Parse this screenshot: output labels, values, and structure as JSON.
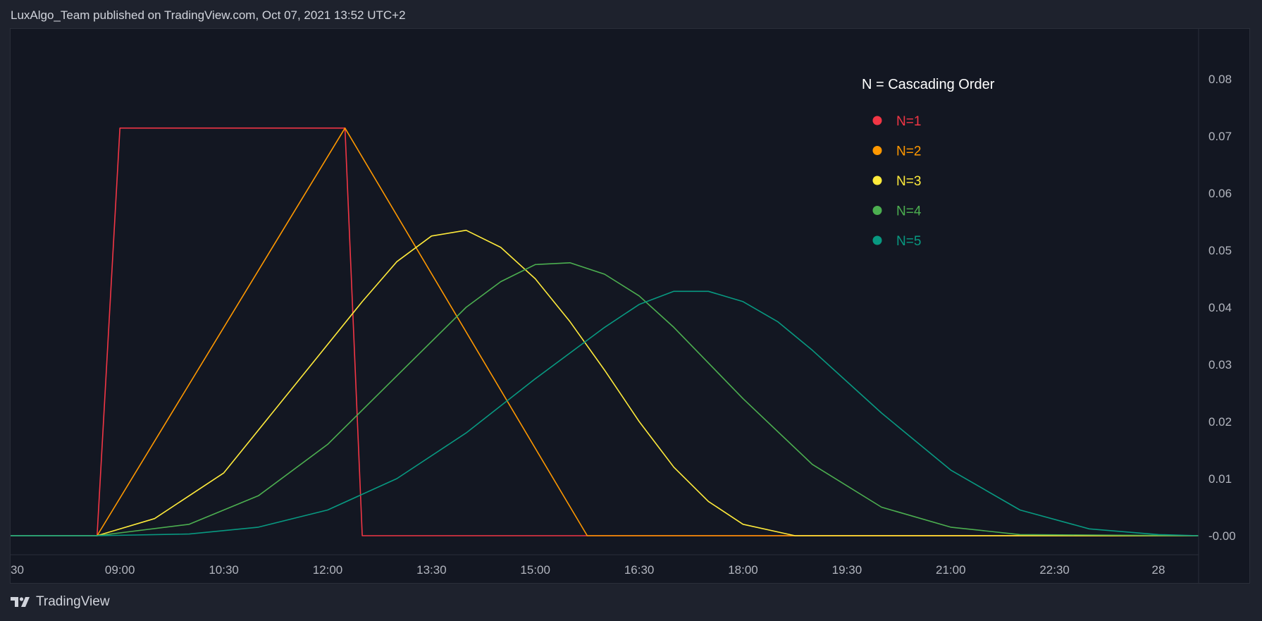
{
  "header": {
    "attribution": "LuxAlgo_Team published on TradingView.com, Oct 07, 2021 13:52 UTC+2"
  },
  "brand": {
    "logo_icon": "tradingview-logo-icon",
    "name": "TradingView"
  },
  "colors": {
    "background": "#131722",
    "page": "#1e222d",
    "axis_text": "#b2b5be",
    "n1": "#f23645",
    "n2": "#ff9800",
    "n3": "#ffeb3b",
    "n4": "#4caf50",
    "n5": "#089981"
  },
  "chart_data": {
    "type": "line",
    "title": "",
    "xlabel": "",
    "ylabel": "",
    "legend": {
      "title": "N = Cascading Order",
      "placement": "top-right"
    },
    "x_ticks": [
      "30",
      "09:00",
      "10:30",
      "12:00",
      "13:30",
      "15:00",
      "16:30",
      "18:00",
      "19:30",
      "21:00",
      "22:30",
      "28"
    ],
    "y_ticks": [
      "0.08",
      "0.07",
      "0.06",
      "0.05",
      "0.04",
      "0.03",
      "0.02",
      "0.01",
      "-0.00"
    ],
    "ylim": [
      0,
      0.08
    ],
    "x_unit": "hour of day",
    "xlim": [
      7.42,
      24.58
    ],
    "series": [
      {
        "name": "N=1",
        "color": "#f23645",
        "x": [
          7.42,
          8.67,
          9.0,
          12.25,
          12.5,
          24.58
        ],
        "y": [
          0,
          0,
          0.0714,
          0.0714,
          0,
          0
        ]
      },
      {
        "name": "N=2",
        "color": "#ff9800",
        "x": [
          7.42,
          8.67,
          12.25,
          15.75,
          24.58
        ],
        "y": [
          0,
          0,
          0.0714,
          0,
          0
        ]
      },
      {
        "name": "N=3",
        "color": "#ffeb3b",
        "x": [
          7.42,
          8.67,
          9.5,
          10.5,
          11.5,
          12.5,
          13.0,
          13.5,
          14.0,
          14.5,
          15.0,
          15.5,
          16.0,
          16.5,
          17.0,
          17.5,
          18.0,
          18.75,
          24.58
        ],
        "y": [
          0,
          0,
          0.003,
          0.011,
          0.026,
          0.041,
          0.048,
          0.0525,
          0.0535,
          0.0505,
          0.045,
          0.0375,
          0.029,
          0.02,
          0.012,
          0.006,
          0.002,
          0,
          0
        ]
      },
      {
        "name": "N=4",
        "color": "#4caf50",
        "x": [
          7.42,
          8.67,
          10.0,
          11.0,
          12.0,
          13.0,
          14.0,
          14.5,
          15.0,
          15.5,
          16.0,
          16.5,
          17.0,
          18.0,
          19.0,
          20.0,
          21.0,
          22.0,
          24.58
        ],
        "y": [
          0,
          0,
          0.002,
          0.007,
          0.016,
          0.028,
          0.04,
          0.0445,
          0.0475,
          0.0478,
          0.0458,
          0.042,
          0.0365,
          0.024,
          0.0125,
          0.005,
          0.0015,
          0.0002,
          0
        ]
      },
      {
        "name": "N=5",
        "color": "#089981",
        "x": [
          7.42,
          8.67,
          10.0,
          11.0,
          12.0,
          13.0,
          14.0,
          15.0,
          16.0,
          16.5,
          17.0,
          17.5,
          18.0,
          18.5,
          19.0,
          20.0,
          21.0,
          22.0,
          23.0,
          24.0,
          24.58
        ],
        "y": [
          0,
          0,
          0.0003,
          0.0015,
          0.0045,
          0.01,
          0.018,
          0.0275,
          0.0365,
          0.0405,
          0.0428,
          0.0428,
          0.041,
          0.0375,
          0.0325,
          0.0215,
          0.0115,
          0.0045,
          0.0012,
          0.0002,
          0
        ]
      }
    ]
  }
}
